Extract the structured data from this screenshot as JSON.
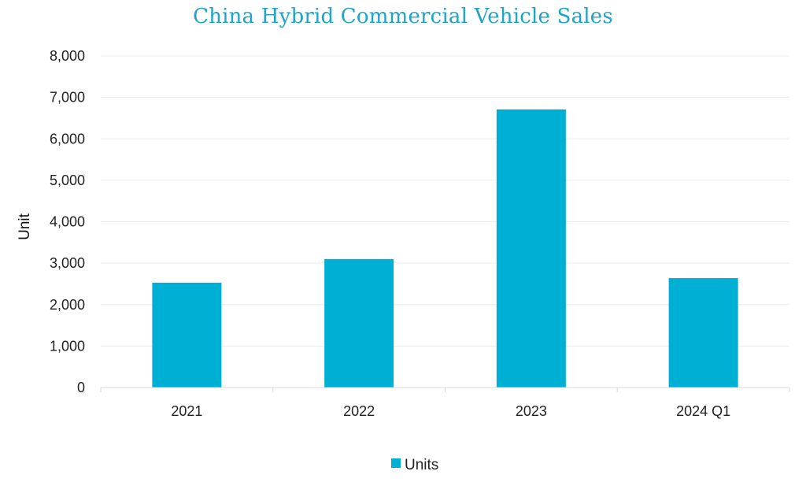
{
  "chart_data": {
    "type": "bar",
    "title": "China Hybrid Commercial Vehicle Sales",
    "xlabel": "",
    "ylabel": "Unit",
    "categories": [
      "2021",
      "2022",
      "2023",
      "2024 Q1"
    ],
    "series": [
      {
        "name": "Units",
        "values": [
          2530,
          3100,
          6710,
          2640
        ],
        "color": "#00B0D4"
      }
    ],
    "ylim": [
      0,
      8000
    ],
    "yticks": [
      "0",
      "1,000",
      "2,000",
      "3,000",
      "4,000",
      "5,000",
      "6,000",
      "7,000",
      "8,000"
    ],
    "grid": true,
    "legend_position": "bottom"
  }
}
